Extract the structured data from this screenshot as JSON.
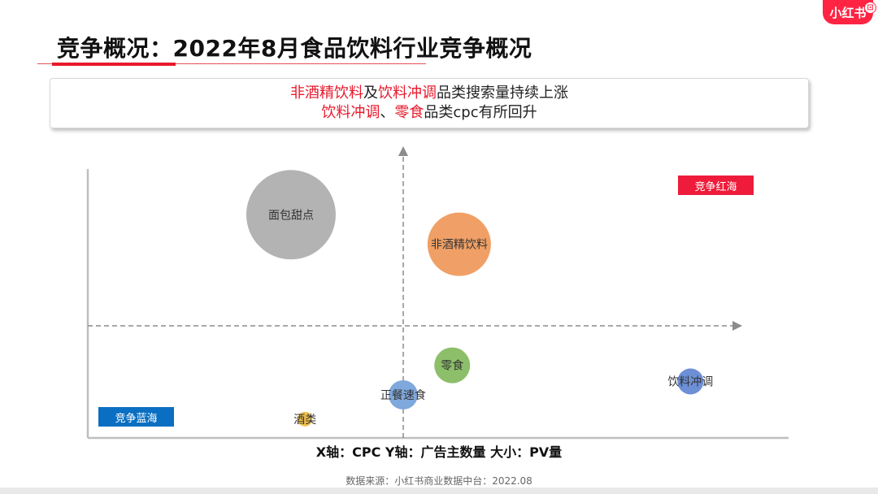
{
  "brand": {
    "logo_text": "小红书",
    "logo_badge": "⊡"
  },
  "header": {
    "title": "竞争概况：2022年8月食品饮料行业竞争概况"
  },
  "callout": {
    "line1": {
      "hl1": "非酒精饮料",
      "mid1": "及",
      "hl2": "饮料冲调",
      "rest": "品类搜索量持续上涨"
    },
    "line2": {
      "hl1": "饮料冲调",
      "mid1": "、",
      "hl2": "零食",
      "rest": "品类cpc有所回升"
    }
  },
  "quadrant_labels": {
    "red_ocean": "竞争红海",
    "blue_ocean": "竞争蓝海"
  },
  "colors": {
    "accent_red": "#e8192c",
    "tag_red": "#ee1c3a",
    "tag_blue": "#0a6fc2",
    "axis": "#bfbfbf",
    "guide": "#8c8c8c"
  },
  "axis_caption": "X轴：CPC  Y轴：广告主数量  大小：PV量",
  "source": "数据来源：小红书商业数据中台：2022.08",
  "chart_data": {
    "type": "scatter",
    "title": "",
    "xlabel": "CPC",
    "ylabel": "广告主数量",
    "size_label": "PV量",
    "xlim": [
      0,
      100
    ],
    "ylim": [
      0,
      100
    ],
    "grid": false,
    "points": [
      {
        "name": "面包甜点",
        "x": 29,
        "y": 83,
        "size": 55,
        "color": "#b3b3b3"
      },
      {
        "name": "非酒精饮料",
        "x": 53,
        "y": 72,
        "size": 39,
        "color": "#f0a066"
      },
      {
        "name": "零食",
        "x": 52,
        "y": 27,
        "size": 22,
        "color": "#8dbf6a"
      },
      {
        "name": "正餐速食",
        "x": 45,
        "y": 16,
        "size": 18,
        "color": "#7fa8dc"
      },
      {
        "name": "饮料冲调",
        "x": 86,
        "y": 21,
        "size": 16,
        "color": "#6d8fd6"
      },
      {
        "name": "酒类",
        "x": 31,
        "y": 7,
        "size": 9,
        "color": "#f2c14e"
      }
    ]
  }
}
